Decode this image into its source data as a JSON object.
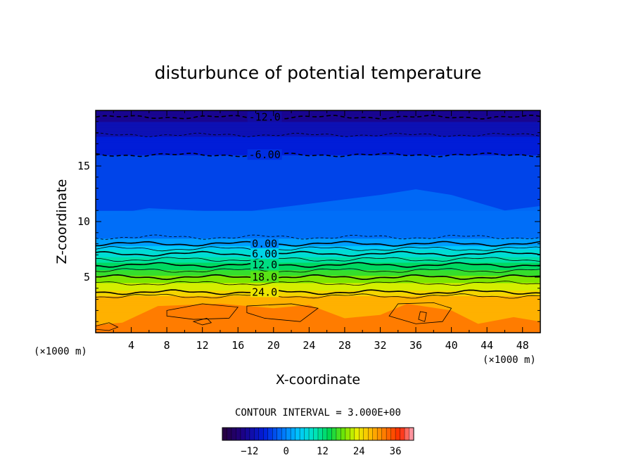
{
  "chart_data": {
    "type": "contour",
    "title": "disturbunce of potential temperature",
    "xlabel": "X-coordinate",
    "ylabel": "Z-coordinate",
    "x_unit_left": "(×1000 m)",
    "x_unit_right": "(×1000 m)",
    "xlim": [
      0,
      50
    ],
    "ylim": [
      0,
      20
    ],
    "x_ticks": [
      4,
      8,
      12,
      16,
      20,
      24,
      28,
      32,
      36,
      40,
      44,
      48
    ],
    "y_ticks": [
      5,
      10,
      15
    ],
    "contour_interval_text": "CONTOUR INTERVAL = 3.000E+00",
    "colorbar": {
      "range": [
        -21,
        42
      ],
      "ticks": [
        "-12",
        "0",
        "12",
        "24",
        "36"
      ]
    },
    "temperature_profile": {
      "z": [
        0,
        2,
        3.3,
        3.6,
        4.5,
        5.5,
        6.5,
        7.5,
        8.1,
        8.8,
        9.5,
        11,
        13,
        15,
        16,
        17.5,
        18.7,
        19.4,
        20
      ],
      "value": [
        30,
        29,
        27,
        25,
        21,
        16,
        11,
        6,
        1,
        -1,
        -2,
        -3,
        -4,
        -4.5,
        -6,
        -8.5,
        -11,
        -13,
        -15
      ]
    },
    "contour_levels": [
      {
        "value": -12.0,
        "label": "-12.0",
        "z": 19.4,
        "style": "dashed",
        "weight": "bold"
      },
      {
        "value": -9.0,
        "label": "",
        "z": 17.8,
        "style": "dashed",
        "weight": "thin"
      },
      {
        "value": -6.0,
        "label": "-6.00",
        "z": 16.0,
        "style": "dashed",
        "weight": "bold"
      },
      {
        "value": -3.0,
        "label": "",
        "z": 8.6,
        "style": "dashed",
        "weight": "thin"
      },
      {
        "value": 0.0,
        "label": "0.00",
        "z": 8.0,
        "style": "solid",
        "weight": "bold"
      },
      {
        "value": 3.0,
        "label": "",
        "z": 7.55,
        "style": "solid",
        "weight": "thin"
      },
      {
        "value": 6.0,
        "label": "6.00",
        "z": 7.1,
        "style": "solid",
        "weight": "bold"
      },
      {
        "value": 9.0,
        "label": "",
        "z": 6.6,
        "style": "solid",
        "weight": "thin"
      },
      {
        "value": 12.0,
        "label": "12.0",
        "z": 6.1,
        "style": "solid",
        "weight": "bold"
      },
      {
        "value": 15.0,
        "label": "",
        "z": 5.6,
        "style": "solid",
        "weight": "thin"
      },
      {
        "value": 18.0,
        "label": "18.0",
        "z": 5.0,
        "style": "solid",
        "weight": "bold"
      },
      {
        "value": 21.0,
        "label": "",
        "z": 4.45,
        "style": "solid",
        "weight": "thin"
      },
      {
        "value": 24.0,
        "label": "24.0",
        "z": 3.65,
        "style": "solid",
        "weight": "bold"
      },
      {
        "value": 27.0,
        "label": "",
        "z": 3.3,
        "style": "solid",
        "weight": "thin"
      }
    ]
  }
}
